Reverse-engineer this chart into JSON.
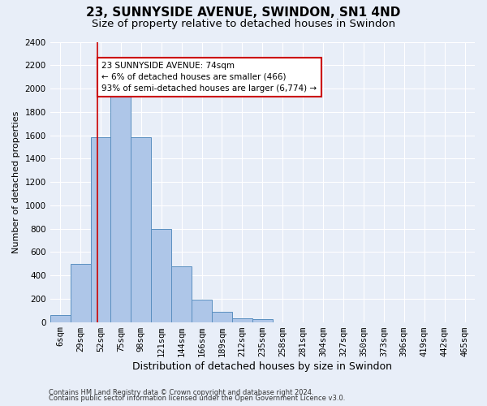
{
  "title": "23, SUNNYSIDE AVENUE, SWINDON, SN1 4ND",
  "subtitle": "Size of property relative to detached houses in Swindon",
  "xlabel": "Distribution of detached houses by size in Swindon",
  "ylabel": "Number of detached properties",
  "categories": [
    "6sqm",
    "29sqm",
    "52sqm",
    "75sqm",
    "98sqm",
    "121sqm",
    "144sqm",
    "166sqm",
    "189sqm",
    "212sqm",
    "235sqm",
    "258sqm",
    "281sqm",
    "304sqm",
    "327sqm",
    "350sqm",
    "373sqm",
    "396sqm",
    "419sqm",
    "442sqm",
    "465sqm"
  ],
  "values": [
    60,
    500,
    1580,
    1950,
    1580,
    800,
    475,
    195,
    90,
    35,
    25,
    0,
    0,
    0,
    0,
    0,
    0,
    0,
    0,
    0,
    0
  ],
  "bar_color": "#aec6e8",
  "bar_edge_color": "#5a8fc0",
  "annotation_text": "23 SUNNYSIDE AVENUE: 74sqm\n← 6% of detached houses are smaller (466)\n93% of semi-detached houses are larger (6,774) →",
  "annotation_box_color": "#ffffff",
  "annotation_box_edge_color": "#cc0000",
  "vline_x": 1.85,
  "vline_color": "#cc0000",
  "ylim": [
    0,
    2400
  ],
  "yticks": [
    0,
    200,
    400,
    600,
    800,
    1000,
    1200,
    1400,
    1600,
    1800,
    2000,
    2200,
    2400
  ],
  "background_color": "#e8eef8",
  "plot_background_color": "#e8eef8",
  "footer_line1": "Contains HM Land Registry data © Crown copyright and database right 2024.",
  "footer_line2": "Contains public sector information licensed under the Open Government Licence v3.0.",
  "title_fontsize": 11,
  "subtitle_fontsize": 9.5,
  "xlabel_fontsize": 9,
  "ylabel_fontsize": 8,
  "tick_fontsize": 7.5,
  "annotation_fontsize": 7.5,
  "footer_fontsize": 6
}
